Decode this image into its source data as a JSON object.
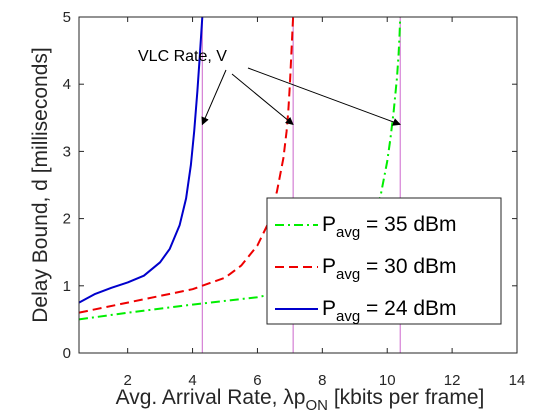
{
  "chart_data": {
    "type": "line",
    "title": "",
    "xlabel_pre": "Avg. Arrival Rate, λp",
    "xlabel_sub": "ON",
    "xlabel_post": " [kbits per frame]",
    "ylabel": "Delay Bound, d [milliseconds]",
    "xlim": [
      0.5,
      14
    ],
    "ylim": [
      0,
      5
    ],
    "xticks": [
      2,
      4,
      6,
      8,
      10,
      12,
      14
    ],
    "yticks": [
      0,
      1,
      2,
      3,
      4,
      5
    ],
    "grid": false,
    "legend_placement": "bottom-right",
    "series": [
      {
        "name_main": "P",
        "name_sub": "avg",
        "name_post": " = 35 dBm",
        "color": "#00ee00",
        "dash": "dashdot",
        "vlc_rate": 10.4,
        "x": [
          0.5,
          2,
          4,
          6,
          7,
          8,
          8.5,
          9,
          9.5,
          9.8,
          10.0,
          10.1,
          10.2,
          10.3,
          10.35,
          10.38,
          10.4
        ],
        "y": [
          0.5,
          0.6,
          0.72,
          0.83,
          0.93,
          1.08,
          1.25,
          1.5,
          1.9,
          2.35,
          2.85,
          3.2,
          3.6,
          4.1,
          4.45,
          4.75,
          5.0
        ]
      },
      {
        "name_main": "P",
        "name_sub": "avg",
        "name_post": " = 30 dBm",
        "color": "#ee0000",
        "dash": "dashed",
        "vlc_rate": 7.1,
        "x": [
          0.5,
          1,
          2,
          3,
          4,
          5,
          5.5,
          6,
          6.3,
          6.6,
          6.8,
          6.9,
          6.95,
          7.0,
          7.05,
          7.1
        ],
        "y": [
          0.6,
          0.65,
          0.75,
          0.85,
          0.95,
          1.12,
          1.3,
          1.6,
          1.9,
          2.4,
          2.9,
          3.3,
          3.6,
          4.0,
          4.5,
          5.0
        ]
      },
      {
        "name_main": "P",
        "name_sub": "avg",
        "name_post": " = 24 dBm",
        "color": "#0000cc",
        "dash": "solid",
        "vlc_rate": 4.3,
        "x": [
          0.5,
          1,
          1.5,
          2,
          2.5,
          3,
          3.3,
          3.6,
          3.8,
          3.95,
          4.05,
          4.15,
          4.22,
          4.26,
          4.3
        ],
        "y": [
          0.75,
          0.88,
          0.97,
          1.05,
          1.15,
          1.35,
          1.55,
          1.9,
          2.3,
          2.8,
          3.3,
          3.9,
          4.4,
          4.7,
          5.0
        ]
      }
    ],
    "annotation": {
      "text": "VLC Rate, V",
      "targets": [
        [
          4.3,
          3.4
        ],
        [
          7.1,
          3.4
        ],
        [
          10.4,
          3.4
        ]
      ]
    },
    "vline_color": "#cc66cc"
  }
}
